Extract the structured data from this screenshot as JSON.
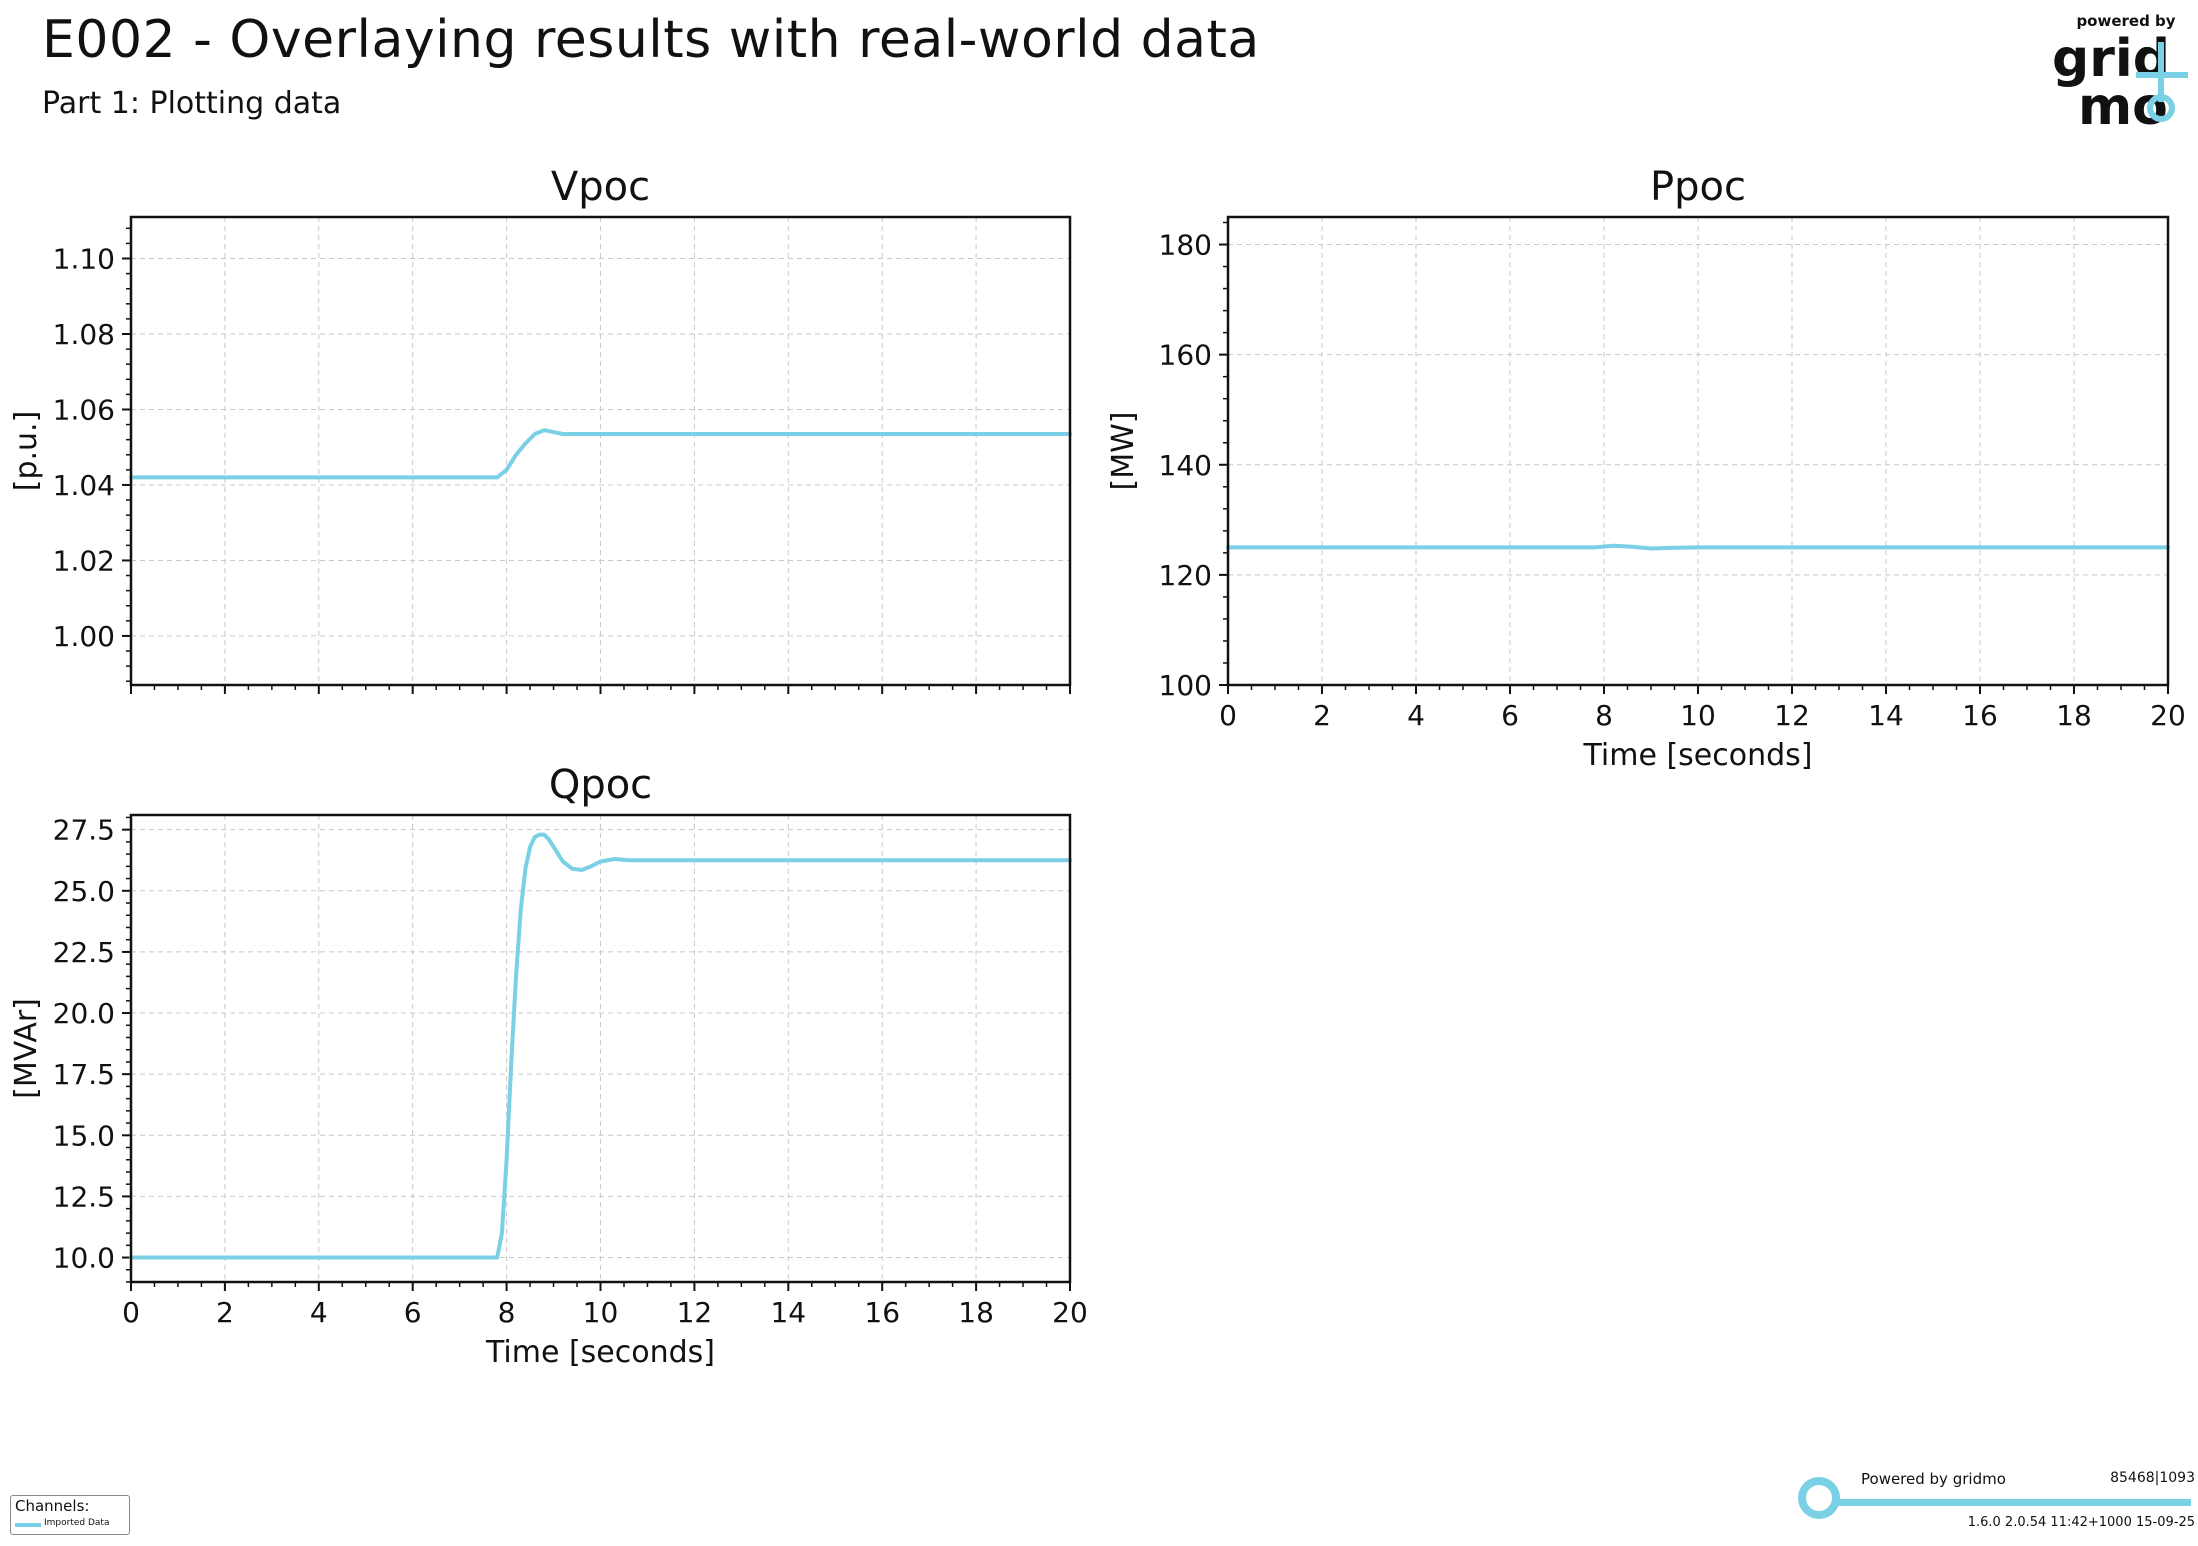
{
  "header": {
    "title": "E002 - Overlaying results with real-world data",
    "subtitle": "Part 1: Plotting data",
    "logo_tagline": "powered by",
    "logo_top": "grid",
    "logo_bottom": "mo"
  },
  "colors": {
    "series": "#7ad0e4",
    "grid": "#c8c8c8",
    "axis": "#111111"
  },
  "chart_data": [
    {
      "type": "line",
      "title": "Vpoc",
      "ylabel": "[p.u.]",
      "xlabel": "",
      "xlim": [
        0,
        20
      ],
      "ylim": [
        0.987,
        1.111
      ],
      "x_ticks": [
        0,
        2,
        4,
        6,
        8,
        10,
        12,
        14,
        16,
        18,
        20
      ],
      "x_tick_labels_shown": false,
      "y_ticks": [
        1.0,
        1.02,
        1.04,
        1.06,
        1.08,
        1.1
      ],
      "y_tick_labels": [
        "1.00",
        "1.02",
        "1.04",
        "1.06",
        "1.08",
        "1.10"
      ],
      "grid": true,
      "series": [
        {
          "x": [
            0,
            2,
            4,
            6,
            7.8,
            7.9,
            8.0,
            8.2,
            8.4,
            8.6,
            8.8,
            9.0,
            9.2,
            9.4,
            9.8,
            10.5,
            12,
            14,
            16,
            18,
            20
          ],
          "y": [
            1.042,
            1.042,
            1.042,
            1.042,
            1.042,
            1.043,
            1.044,
            1.048,
            1.051,
            1.0535,
            1.0545,
            1.054,
            1.0535,
            1.0535,
            1.0535,
            1.0535,
            1.0535,
            1.0535,
            1.0535,
            1.0535,
            1.0535
          ]
        }
      ]
    },
    {
      "type": "line",
      "title": "Ppoc",
      "ylabel": "[MW]",
      "xlabel": "Time [seconds]",
      "xlim": [
        0,
        20
      ],
      "ylim": [
        100,
        185
      ],
      "x_ticks": [
        0,
        2,
        4,
        6,
        8,
        10,
        12,
        14,
        16,
        18,
        20
      ],
      "x_tick_labels": [
        "0",
        "2",
        "4",
        "6",
        "8",
        "10",
        "12",
        "14",
        "16",
        "18",
        "20"
      ],
      "y_ticks": [
        100,
        120,
        140,
        160,
        180
      ],
      "y_tick_labels": [
        "100",
        "120",
        "140",
        "160",
        "180"
      ],
      "grid": true,
      "series": [
        {
          "x": [
            0,
            2,
            4,
            6,
            7.8,
            8.2,
            8.6,
            9.0,
            9.4,
            10,
            12,
            14,
            16,
            18,
            20
          ],
          "y": [
            125,
            125,
            125,
            125,
            125,
            125.3,
            125.1,
            124.8,
            124.9,
            125,
            125,
            125,
            125,
            125,
            125
          ]
        }
      ]
    },
    {
      "type": "line",
      "title": "Qpoc",
      "ylabel": "[MVAr]",
      "xlabel": "Time [seconds]",
      "xlim": [
        0,
        20
      ],
      "ylim": [
        9.0,
        28.1
      ],
      "x_ticks": [
        0,
        2,
        4,
        6,
        8,
        10,
        12,
        14,
        16,
        18,
        20
      ],
      "x_tick_labels": [
        "0",
        "2",
        "4",
        "6",
        "8",
        "10",
        "12",
        "14",
        "16",
        "18",
        "20"
      ],
      "y_ticks": [
        10.0,
        12.5,
        15.0,
        17.5,
        20.0,
        22.5,
        25.0,
        27.5
      ],
      "y_tick_labels": [
        "10.0",
        "12.5",
        "15.0",
        "17.5",
        "20.0",
        "22.5",
        "25.0",
        "27.5"
      ],
      "grid": true,
      "series": [
        {
          "x": [
            0,
            2,
            4,
            6,
            7.8,
            7.9,
            8.0,
            8.1,
            8.2,
            8.3,
            8.4,
            8.5,
            8.6,
            8.7,
            8.8,
            8.9,
            9.0,
            9.2,
            9.4,
            9.6,
            9.8,
            10.0,
            10.3,
            10.6,
            11,
            12,
            14,
            16,
            18,
            20
          ],
          "y": [
            10.0,
            10.0,
            10.0,
            10.0,
            10.0,
            11.0,
            14.0,
            18.0,
            21.5,
            24.2,
            25.9,
            26.8,
            27.2,
            27.3,
            27.3,
            27.1,
            26.8,
            26.2,
            25.9,
            25.85,
            26.0,
            26.2,
            26.3,
            26.25,
            26.25,
            26.25,
            26.25,
            26.25,
            26.25,
            26.25
          ]
        }
      ]
    }
  ],
  "legend": {
    "title": "Channels:",
    "items": [
      "Imported Data"
    ]
  },
  "footer": {
    "credit": "Powered by gridmo",
    "id": "85468|1093",
    "version": "1.6.0  2.0.54  11:42+1000 15-09-25"
  }
}
